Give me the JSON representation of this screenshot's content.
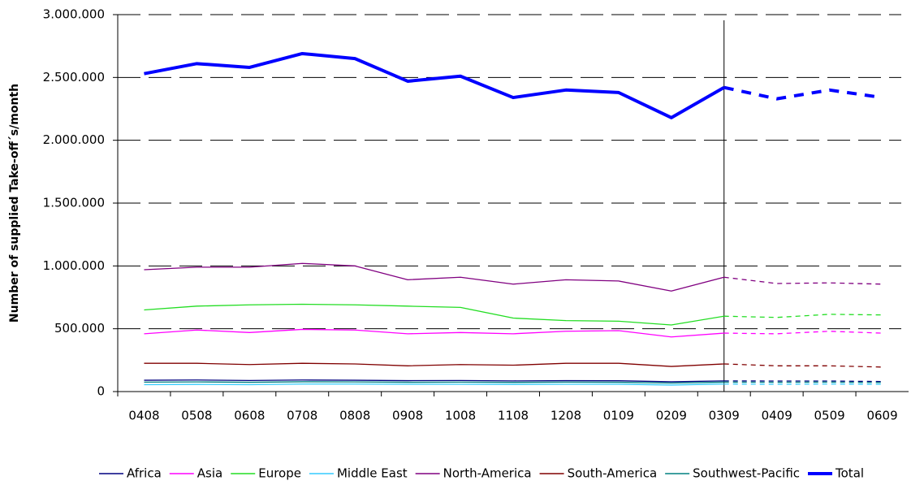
{
  "chart_data": {
    "type": "line",
    "y_axis_label": "Number of supplied Take-off´s/month",
    "categories": [
      "0408",
      "0508",
      "0608",
      "0708",
      "0808",
      "0908",
      "1008",
      "1108",
      "1208",
      "0109",
      "0209",
      "0309",
      "0409",
      "0509",
      "0609"
    ],
    "forecast_start": 11,
    "ylim": [
      0,
      3000000
    ],
    "yticks": [
      0,
      {
        "value": 500000,
        "label": "500.000"
      },
      {
        "value": 1000000,
        "label": "1.000.000"
      },
      {
        "value": 1500000,
        "label": "1.500.000"
      },
      {
        "value": 2000000,
        "label": "2.000.000"
      },
      {
        "value": 2500000,
        "label": "2.500.000"
      },
      {
        "value": 3000000,
        "label": "3.000.000"
      }
    ],
    "grid": true,
    "legend": "bottom",
    "series": [
      {
        "name": "Africa",
        "color": "#000080",
        "values": [
          90000,
          92000,
          88000,
          92000,
          90000,
          87000,
          88000,
          85000,
          87000,
          86000,
          78000,
          85000,
          84000,
          84000,
          80000
        ]
      },
      {
        "name": "Asia",
        "color": "#ff00ff",
        "values": [
          460000,
          490000,
          470000,
          495000,
          490000,
          460000,
          470000,
          460000,
          480000,
          485000,
          435000,
          465000,
          460000,
          480000,
          465000
        ]
      },
      {
        "name": "Europe",
        "color": "#22dd22",
        "values": [
          650000,
          680000,
          690000,
          695000,
          690000,
          680000,
          670000,
          585000,
          565000,
          560000,
          530000,
          600000,
          590000,
          615000,
          610000
        ]
      },
      {
        "name": "Middle East",
        "color": "#33ccff",
        "values": [
          55000,
          57000,
          55000,
          60000,
          60000,
          58000,
          58000,
          57000,
          58000,
          58000,
          52000,
          60000,
          58000,
          60000,
          58000
        ]
      },
      {
        "name": "North-America",
        "color": "#800080",
        "values": [
          970000,
          990000,
          990000,
          1020000,
          1000000,
          890000,
          910000,
          855000,
          890000,
          880000,
          800000,
          910000,
          860000,
          865000,
          855000
        ]
      },
      {
        "name": "South-America",
        "color": "#800000",
        "values": [
          225000,
          225000,
          215000,
          225000,
          220000,
          205000,
          215000,
          210000,
          225000,
          225000,
          200000,
          220000,
          205000,
          205000,
          195000
        ]
      },
      {
        "name": "Southwest-Pacific",
        "color": "#008080",
        "values": [
          75000,
          77000,
          74000,
          78000,
          77000,
          74000,
          75000,
          73000,
          75000,
          74000,
          68000,
          75000,
          74000,
          75000,
          72000
        ]
      },
      {
        "name": "Total",
        "color": "#0000ff",
        "width": 4,
        "values": [
          2530000,
          2610000,
          2580000,
          2690000,
          2650000,
          2470000,
          2510000,
          2340000,
          2400000,
          2380000,
          2180000,
          2420000,
          2330000,
          2400000,
          2340000
        ]
      }
    ]
  }
}
